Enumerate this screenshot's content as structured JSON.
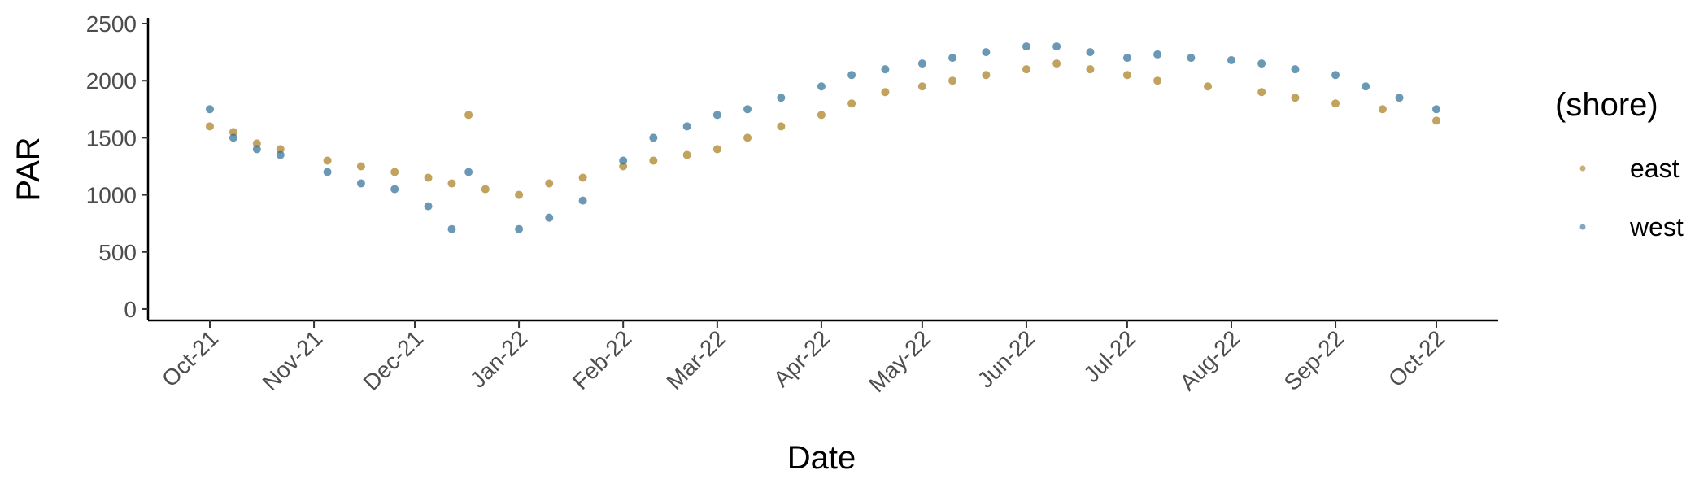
{
  "chart_data": {
    "type": "scatter",
    "xlabel": "Date",
    "ylabel": "PAR",
    "legend_title": "(shore)",
    "legend_position": "right",
    "grid": false,
    "x_range": [
      "2021-10-01",
      "2022-10-01"
    ],
    "ylim": [
      -100,
      2550
    ],
    "x_ticks": [
      "Oct-21",
      "Nov-21",
      "Dec-21",
      "Jan-22",
      "Feb-22",
      "Mar-22",
      "Apr-22",
      "May-22",
      "Jun-22",
      "Jul-22",
      "Aug-22",
      "Sep-22",
      "Oct-22"
    ],
    "x_tick_dates": [
      "2021-10-01",
      "2021-11-01",
      "2021-12-01",
      "2022-01-01",
      "2022-02-01",
      "2022-03-01",
      "2022-04-01",
      "2022-05-01",
      "2022-06-01",
      "2022-07-01",
      "2022-08-01",
      "2022-09-01",
      "2022-10-01"
    ],
    "y_ticks": [
      "0",
      "500",
      "1000",
      "1500",
      "2000",
      "2500"
    ],
    "y_tick_values": [
      0,
      500,
      1000,
      1500,
      2000,
      2500
    ],
    "series": [
      {
        "name": "east",
        "color": "#a67a1a",
        "x": [
          "2021-10-01",
          "2021-10-08",
          "2021-10-15",
          "2021-10-22",
          "2021-11-05",
          "2021-11-15",
          "2021-11-25",
          "2021-12-05",
          "2021-12-12",
          "2021-12-17",
          "2021-12-22",
          "2022-01-01",
          "2022-01-10",
          "2022-01-20",
          "2022-02-01",
          "2022-02-10",
          "2022-02-20",
          "2022-03-01",
          "2022-03-10",
          "2022-03-20",
          "2022-04-01",
          "2022-04-10",
          "2022-04-20",
          "2022-05-01",
          "2022-05-10",
          "2022-05-20",
          "2022-06-01",
          "2022-06-10",
          "2022-06-20",
          "2022-07-01",
          "2022-07-10",
          "2022-07-25",
          "2022-08-10",
          "2022-08-20",
          "2022-09-01",
          "2022-09-15",
          "2022-10-01"
        ],
        "y": [
          1600,
          1550,
          1450,
          1400,
          1300,
          1250,
          1200,
          1150,
          1100,
          1700,
          1050,
          1000,
          1100,
          1150,
          1250,
          1300,
          1350,
          1400,
          1500,
          1600,
          1700,
          1800,
          1900,
          1950,
          2000,
          2050,
          2100,
          2150,
          2100,
          2050,
          2000,
          1950,
          1900,
          1850,
          1800,
          1750,
          1650
        ]
      },
      {
        "name": "west",
        "color": "#2c6e96",
        "x": [
          "2021-10-01",
          "2021-10-08",
          "2021-10-15",
          "2021-10-22",
          "2021-11-05",
          "2021-11-15",
          "2021-11-25",
          "2021-12-05",
          "2021-12-12",
          "2021-12-17",
          "2022-01-01",
          "2022-01-10",
          "2022-01-20",
          "2022-02-01",
          "2022-02-10",
          "2022-02-20",
          "2022-03-01",
          "2022-03-10",
          "2022-03-20",
          "2022-04-01",
          "2022-04-10",
          "2022-04-20",
          "2022-05-01",
          "2022-05-10",
          "2022-05-20",
          "2022-06-01",
          "2022-06-10",
          "2022-06-20",
          "2022-07-01",
          "2022-07-10",
          "2022-07-20",
          "2022-08-01",
          "2022-08-10",
          "2022-08-20",
          "2022-09-01",
          "2022-09-10",
          "2022-09-20",
          "2022-10-01"
        ],
        "y": [
          1750,
          1500,
          1400,
          1350,
          1200,
          1100,
          1050,
          900,
          700,
          1200,
          700,
          800,
          950,
          1300,
          1500,
          1600,
          1700,
          1750,
          1850,
          1950,
          2050,
          2100,
          2150,
          2200,
          2250,
          2300,
          2300,
          2250,
          2200,
          2230,
          2200,
          2180,
          2150,
          2100,
          2050,
          1950,
          1850,
          1750
        ]
      }
    ]
  }
}
